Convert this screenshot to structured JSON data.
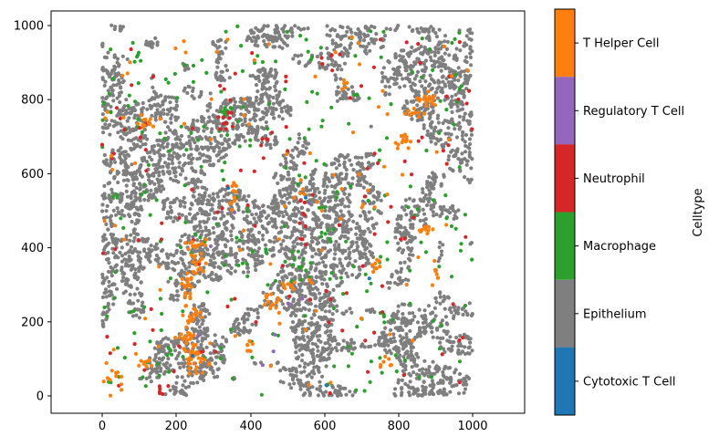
{
  "colorbar": {
    "label": "Celltype",
    "entries_top_to_bottom": [
      {
        "label": "T Helper Cell",
        "color": "#ff7f0e"
      },
      {
        "label": "Regulatory T Cell",
        "color": "#9467bd"
      },
      {
        "label": "Neutrophil",
        "color": "#d62728"
      },
      {
        "label": "Macrophage",
        "color": "#2ca02c"
      },
      {
        "label": "Epithelium",
        "color": "#7f7f7f"
      },
      {
        "label": "Cytotoxic T Cell",
        "color": "#1f77b4"
      }
    ]
  },
  "chart_data": {
    "type": "scatter",
    "title": "",
    "xlabel": "",
    "ylabel": "",
    "xlim": [
      -138,
      1140
    ],
    "ylim": [
      -47,
      1039
    ],
    "xticks": [
      0,
      200,
      400,
      600,
      800,
      1000
    ],
    "yticks": [
      0,
      200,
      400,
      600,
      800,
      1000
    ],
    "grid": false,
    "marker_radius_px": 2.1,
    "legend_position": "right-colorbar",
    "series": [
      {
        "name": "Epithelium",
        "color": "#7f7f7f",
        "count": 4800,
        "mode": "noise"
      },
      {
        "name": "Macrophage",
        "color": "#2ca02c",
        "count": 300,
        "clusters": [
          {
            "x": 330,
            "y": 770,
            "n": 12,
            "sx": 16,
            "sy": 12
          },
          {
            "x": 95,
            "y": 905,
            "n": 5,
            "sx": 10,
            "sy": 8
          },
          {
            "x": 610,
            "y": 430,
            "n": 5,
            "sx": 10,
            "sy": 10
          },
          {
            "x": 545,
            "y": 350,
            "n": 4,
            "sx": 8,
            "sy": 8
          },
          {
            "x": 180,
            "y": 120,
            "n": 4,
            "sx": 8,
            "sy": 8
          }
        ],
        "scatter": 270
      },
      {
        "name": "Neutrophil",
        "color": "#d62728",
        "count": 150,
        "clusters": [
          {
            "x": 330,
            "y": 745,
            "n": 12,
            "sx": 12,
            "sy": 12
          },
          {
            "x": 540,
            "y": 480,
            "n": 10,
            "sx": 8,
            "sy": 55
          },
          {
            "x": 160,
            "y": 12,
            "n": 5,
            "sx": 10,
            "sy": 6
          },
          {
            "x": 430,
            "y": 690,
            "n": 4,
            "sx": 8,
            "sy": 8
          },
          {
            "x": 60,
            "y": 720,
            "n": 8,
            "sx": 35,
            "sy": 40
          }
        ],
        "scatter": 111
      },
      {
        "name": "T Helper Cell",
        "color": "#ff7f0e",
        "count": 360,
        "clusters": [
          {
            "x": 245,
            "y": 95,
            "n": 26,
            "sx": 16,
            "sy": 18
          },
          {
            "x": 232,
            "y": 160,
            "n": 20,
            "sx": 12,
            "sy": 18
          },
          {
            "x": 238,
            "y": 215,
            "n": 16,
            "sx": 12,
            "sy": 16
          },
          {
            "x": 230,
            "y": 280,
            "n": 16,
            "sx": 12,
            "sy": 18
          },
          {
            "x": 255,
            "y": 345,
            "n": 16,
            "sx": 12,
            "sy": 18
          },
          {
            "x": 258,
            "y": 400,
            "n": 12,
            "sx": 12,
            "sy": 12
          },
          {
            "x": 112,
            "y": 85,
            "n": 8,
            "sx": 12,
            "sy": 12
          },
          {
            "x": 125,
            "y": 740,
            "n": 12,
            "sx": 24,
            "sy": 10
          },
          {
            "x": 878,
            "y": 806,
            "n": 16,
            "sx": 12,
            "sy": 10
          },
          {
            "x": 812,
            "y": 690,
            "n": 15,
            "sx": 14,
            "sy": 12
          },
          {
            "x": 845,
            "y": 762,
            "n": 9,
            "sx": 14,
            "sy": 10
          },
          {
            "x": 352,
            "y": 550,
            "n": 12,
            "sx": 8,
            "sy": 30
          },
          {
            "x": 455,
            "y": 258,
            "n": 16,
            "sx": 14,
            "sy": 16
          },
          {
            "x": 505,
            "y": 300,
            "n": 8,
            "sx": 10,
            "sy": 10
          },
          {
            "x": 30,
            "y": 45,
            "n": 12,
            "sx": 14,
            "sy": 22
          },
          {
            "x": 870,
            "y": 445,
            "n": 10,
            "sx": 10,
            "sy": 14
          },
          {
            "x": 895,
            "y": 330,
            "n": 8,
            "sx": 8,
            "sy": 14
          },
          {
            "x": 735,
            "y": 345,
            "n": 8,
            "sx": 8,
            "sy": 10
          },
          {
            "x": 768,
            "y": 92,
            "n": 7,
            "sx": 10,
            "sy": 10
          },
          {
            "x": 402,
            "y": 122,
            "n": 6,
            "sx": 10,
            "sy": 10
          },
          {
            "x": 648,
            "y": 838,
            "n": 5,
            "sx": 8,
            "sy": 8
          }
        ],
        "scatter": 102
      },
      {
        "name": "Regulatory T Cell",
        "color": "#9467bd",
        "count": 9,
        "points": [
          [
            357,
            495
          ],
          [
            293,
            404
          ],
          [
            433,
            83
          ],
          [
            466,
            165
          ],
          [
            503,
            248
          ],
          [
            540,
            262
          ],
          [
            259,
            162
          ],
          [
            560,
            520
          ],
          [
            462,
            120
          ]
        ]
      },
      {
        "name": "Cytotoxic T Cell",
        "color": "#1f77b4",
        "count": 5,
        "points": [
          [
            340,
            561
          ],
          [
            549,
            535
          ],
          [
            721,
            317
          ],
          [
            244,
            108
          ],
          [
            606,
            28
          ]
        ]
      }
    ],
    "generation": {
      "seed": 7,
      "noise": {
        "coarse_grid": 7,
        "fine_grid": 22,
        "threshold": 0.485,
        "max_attempt_factor": 14
      }
    }
  }
}
